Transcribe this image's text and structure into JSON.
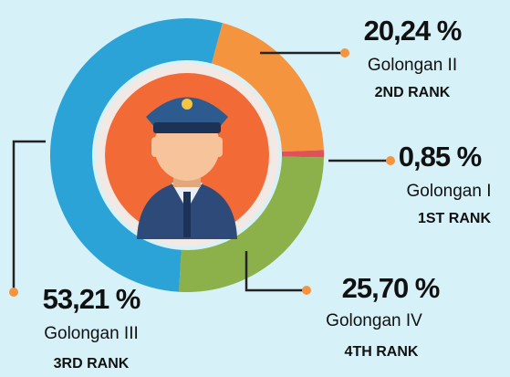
{
  "chart_data": {
    "type": "pie",
    "categories": [
      "Golongan II",
      "Golongan I",
      "Golongan IV",
      "Golongan III"
    ],
    "values": [
      20.24,
      0.85,
      25.7,
      53.21
    ],
    "value_labels": [
      "20,24 %",
      "0,85 %",
      "25,70 %",
      "53,21 %"
    ],
    "ranks": [
      "2ND RANK",
      "1ST RANK",
      "4TH RANK",
      "3RD RANK"
    ],
    "colors": [
      "#f5943f",
      "#e0515a",
      "#8cb04a",
      "#2ba3d6"
    ]
  }
}
